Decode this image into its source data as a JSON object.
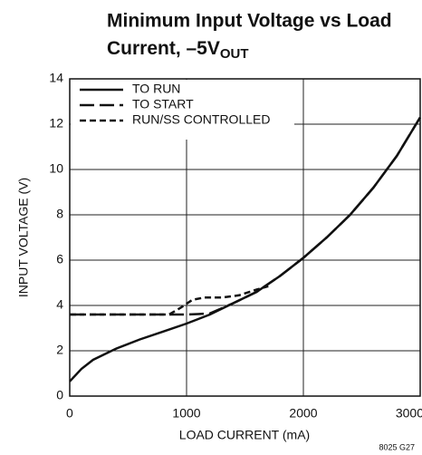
{
  "chart_data": {
    "type": "line",
    "title": [
      "Minimum Input Voltage vs Load",
      "Current, –5V"
    ],
    "title_subscript": "OUT",
    "x_label": "LOAD CURRENT (mA)",
    "y_label": "INPUT VOLTAGE (V)",
    "footnote": "8025 G27",
    "xlim": [
      0,
      3000
    ],
    "xticks": [
      0,
      1000,
      2000,
      3000
    ],
    "ylim": [
      0,
      14
    ],
    "yticks": [
      0,
      2,
      4,
      6,
      8,
      10,
      12,
      14
    ],
    "grid": true,
    "legend": "top-left",
    "series": [
      {
        "name": "TO RUN",
        "color": "#111111",
        "dash": "solid",
        "x": [
          0,
          100,
          200,
          400,
          600,
          800,
          1000,
          1200,
          1400,
          1600,
          1800,
          2000,
          2200,
          2400,
          2600,
          2800,
          3000
        ],
        "values": [
          0.65,
          1.2,
          1.6,
          2.1,
          2.5,
          2.85,
          3.2,
          3.6,
          4.1,
          4.6,
          5.3,
          6.1,
          7.0,
          8.0,
          9.2,
          10.6,
          12.3
        ]
      },
      {
        "name": "TO START",
        "color": "#111111",
        "dash": "long",
        "x": [
          0,
          400,
          800,
          1000,
          1100,
          1200,
          1400,
          1600,
          1800,
          2000,
          2200,
          2400,
          2600,
          2800,
          3000
        ],
        "values": [
          3.6,
          3.6,
          3.6,
          3.6,
          3.62,
          3.65,
          4.1,
          4.6,
          5.3,
          6.1,
          7.0,
          8.0,
          9.2,
          10.6,
          12.3
        ]
      },
      {
        "name": "RUN/SS CONTROLLED",
        "color": "#111111",
        "dash": "short",
        "x": [
          0,
          400,
          850,
          950,
          1050,
          1150,
          1300,
          1450,
          1600,
          1700
        ],
        "values": [
          3.6,
          3.6,
          3.6,
          3.9,
          4.25,
          4.35,
          4.35,
          4.45,
          4.7,
          4.85
        ]
      }
    ]
  }
}
